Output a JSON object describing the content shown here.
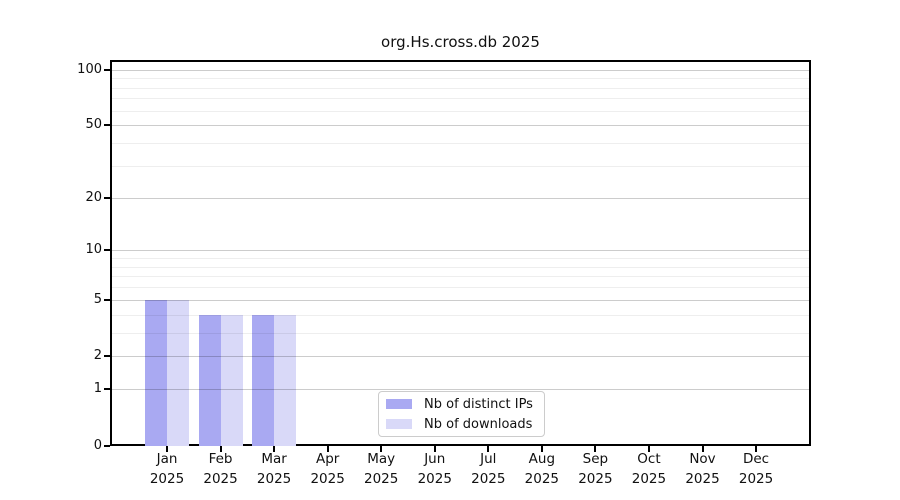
{
  "figure_title": "org.Hs.cross.db 2025",
  "chart_data": {
    "type": "bar",
    "title": "org.Hs.cross.db 2025",
    "xlabel": "",
    "ylabel": "",
    "categories": [
      "Jan",
      "Feb",
      "Mar",
      "Apr",
      "May",
      "Jun",
      "Jul",
      "Aug",
      "Sep",
      "Oct",
      "Nov",
      "Dec"
    ],
    "category_year": "2025",
    "series": [
      {
        "name": "Nb of distinct IPs",
        "color": "#a9a9f2",
        "values": [
          5,
          4,
          4,
          null,
          null,
          null,
          null,
          null,
          null,
          null,
          null,
          null
        ]
      },
      {
        "name": "Nb of downloads",
        "color": "#d9d9f8",
        "values": [
          5,
          4,
          4,
          null,
          null,
          null,
          null,
          null,
          null,
          null,
          null,
          null
        ]
      }
    ],
    "yscale": "log1p",
    "ylim": [
      0,
      110
    ],
    "yticks_major": [
      0,
      1,
      2,
      5,
      10,
      20,
      50,
      100
    ],
    "yticks_minor": [
      3,
      4,
      6,
      7,
      8,
      9,
      30,
      40,
      60,
      70,
      80,
      90
    ],
    "grid": "horizontal",
    "legend_position": "inside-bottom-center",
    "colors": {
      "axis_border": "#000000",
      "grid_major": "#cccccc",
      "grid_minor": "#ececec",
      "background": "#ffffff"
    }
  }
}
